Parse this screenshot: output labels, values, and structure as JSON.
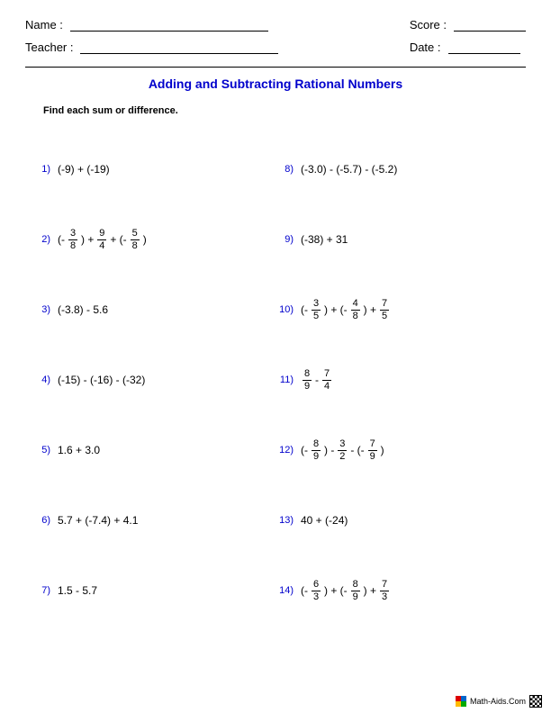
{
  "header": {
    "name_label": "Name :",
    "teacher_label": "Teacher :",
    "score_label": "Score :",
    "date_label": "Date :"
  },
  "title": "Adding and Subtracting Rational Numbers",
  "instructions": "Find each sum or difference.",
  "problems_left": [
    {
      "n": "1)",
      "parts": [
        {
          "t": "text",
          "v": "(-9) + (-19)"
        }
      ]
    },
    {
      "n": "2)",
      "parts": [
        {
          "t": "text",
          "v": "(-"
        },
        {
          "t": "frac",
          "num": "3",
          "den": "8"
        },
        {
          "t": "text",
          "v": " ) + "
        },
        {
          "t": "frac",
          "num": "9",
          "den": "4"
        },
        {
          "t": "text",
          "v": " + (- "
        },
        {
          "t": "frac",
          "num": "5",
          "den": "8"
        },
        {
          "t": "text",
          "v": " )"
        }
      ]
    },
    {
      "n": "3)",
      "parts": [
        {
          "t": "text",
          "v": "(-3.8) - 5.6"
        }
      ]
    },
    {
      "n": "4)",
      "parts": [
        {
          "t": "text",
          "v": "(-15) - (-16) - (-32)"
        }
      ]
    },
    {
      "n": "5)",
      "parts": [
        {
          "t": "text",
          "v": "1.6 + 3.0"
        }
      ]
    },
    {
      "n": "6)",
      "parts": [
        {
          "t": "text",
          "v": "5.7 + (-7.4) + 4.1"
        }
      ]
    },
    {
      "n": "7)",
      "parts": [
        {
          "t": "text",
          "v": "1.5 - 5.7"
        }
      ]
    }
  ],
  "problems_right": [
    {
      "n": "8)",
      "parts": [
        {
          "t": "text",
          "v": "(-3.0) - (-5.7) - (-5.2)"
        }
      ]
    },
    {
      "n": "9)",
      "parts": [
        {
          "t": "text",
          "v": "(-38) + 31"
        }
      ]
    },
    {
      "n": "10)",
      "parts": [
        {
          "t": "text",
          "v": "(-"
        },
        {
          "t": "frac",
          "num": "3",
          "den": "5"
        },
        {
          "t": "text",
          "v": " ) + (- "
        },
        {
          "t": "frac",
          "num": "4",
          "den": "8"
        },
        {
          "t": "text",
          "v": " ) + "
        },
        {
          "t": "frac",
          "num": "7",
          "den": "5"
        }
      ]
    },
    {
      "n": "11)",
      "parts": [
        {
          "t": "frac",
          "num": "8",
          "den": "9"
        },
        {
          "t": "text",
          "v": " - "
        },
        {
          "t": "frac",
          "num": "7",
          "den": "4"
        }
      ]
    },
    {
      "n": "12)",
      "parts": [
        {
          "t": "text",
          "v": "(-"
        },
        {
          "t": "frac",
          "num": "8",
          "den": "9"
        },
        {
          "t": "text",
          "v": " ) - "
        },
        {
          "t": "frac",
          "num": "3",
          "den": "2"
        },
        {
          "t": "text",
          "v": " - (- "
        },
        {
          "t": "frac",
          "num": "7",
          "den": "9"
        },
        {
          "t": "text",
          "v": " )"
        }
      ]
    },
    {
      "n": "13)",
      "parts": [
        {
          "t": "text",
          "v": "40 + (-24)"
        }
      ]
    },
    {
      "n": "14)",
      "parts": [
        {
          "t": "text",
          "v": "(-"
        },
        {
          "t": "frac",
          "num": "6",
          "den": "3"
        },
        {
          "t": "text",
          "v": " ) + (- "
        },
        {
          "t": "frac",
          "num": "8",
          "den": "9"
        },
        {
          "t": "text",
          "v": " ) + "
        },
        {
          "t": "frac",
          "num": "7",
          "den": "3"
        }
      ]
    }
  ],
  "footer": {
    "site": "Math-Aids.Com"
  }
}
